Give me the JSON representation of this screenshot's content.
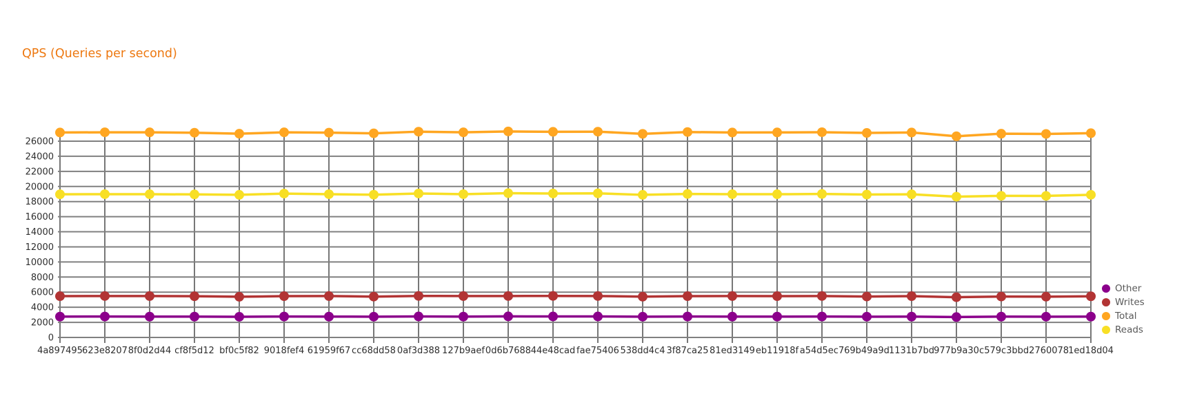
{
  "page": {
    "background": "#ffffff"
  },
  "chart_data": {
    "type": "line",
    "title": "QPS (Queries per second)",
    "title_color": "#ED7810",
    "xlabel": "",
    "ylabel": "",
    "ylim": [
      0,
      26000
    ],
    "y_tick_step": 2000,
    "grid": true,
    "legend_position": "right",
    "grid_colors": {
      "horizontal": "#808080",
      "vertical": "#3d3d3d"
    },
    "axis_text_color": "#2e2e2e",
    "categories": [
      "4a897495",
      "623e8207",
      "8f0d2d44",
      "cf8f5d12",
      "bf0c5f82",
      "9018fef4",
      "61959f67",
      "cc68dd58",
      "0af3d388",
      "127b9aef",
      "0d6b7688",
      "44e48cad",
      "fae75406",
      "538dd4c4",
      "3f87ca25",
      "81ed3149",
      "eb11918f",
      "a54d5ec7",
      "69b49a9d",
      "1131b7bd",
      "977b9a30",
      "c579c3bb",
      "d2760078",
      "1ed18d04"
    ],
    "series": [
      {
        "name": "Other",
        "color": "#8B008B",
        "values": [
          2760,
          2770,
          2760,
          2760,
          2740,
          2770,
          2760,
          2750,
          2780,
          2760,
          2790,
          2780,
          2780,
          2750,
          2770,
          2760,
          2760,
          2770,
          2750,
          2760,
          2700,
          2760,
          2750,
          2760
        ]
      },
      {
        "name": "Writes",
        "color": "#B23434",
        "values": [
          5470,
          5490,
          5480,
          5460,
          5390,
          5470,
          5480,
          5410,
          5500,
          5480,
          5490,
          5500,
          5490,
          5400,
          5470,
          5480,
          5470,
          5490,
          5420,
          5470,
          5330,
          5420,
          5400,
          5450
        ]
      },
      {
        "name": "Total",
        "color": "#FFA621",
        "values": [
          27150,
          27180,
          27170,
          27120,
          26990,
          27170,
          27130,
          27040,
          27260,
          27170,
          27290,
          27240,
          27260,
          26970,
          27210,
          27150,
          27160,
          27190,
          27090,
          27150,
          26650,
          26990,
          26960,
          27060
        ]
      },
      {
        "name": "Reads",
        "color": "#F8DF25",
        "values": [
          18960,
          18980,
          18970,
          18950,
          18890,
          19060,
          18980,
          18910,
          19070,
          18980,
          19110,
          19070,
          19090,
          18890,
          19010,
          18980,
          18970,
          19010,
          18930,
          18960,
          18650,
          18760,
          18750,
          18900
        ]
      }
    ]
  }
}
